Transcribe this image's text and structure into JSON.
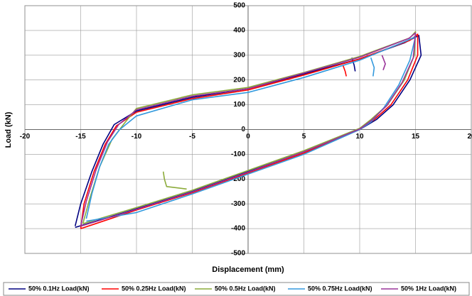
{
  "chart_data": {
    "type": "line",
    "xlabel": "Displacement (mm)",
    "ylabel": "Load (kN)",
    "xlim": [
      -20,
      20
    ],
    "xticks": [
      -20,
      -15,
      -10,
      -5,
      0,
      5,
      10,
      15,
      20
    ],
    "ylim": [
      -500,
      500
    ],
    "yticks": [
      -500,
      -400,
      -300,
      -200,
      -100,
      0,
      100,
      200,
      300,
      400,
      500
    ],
    "grid": true,
    "legend": "bottom",
    "series": [
      {
        "name": "50% 0.1Hz Load(kN)",
        "color": "#000080",
        "x": [
          -15.5,
          -15,
          -14,
          -13,
          -12,
          -10,
          -5,
          0,
          5,
          10,
          14,
          15.3,
          15.5,
          14.5,
          13,
          11.5,
          10,
          5,
          0,
          -5,
          -10,
          -15.5,
          null,
          9.3,
          9.5,
          9.6
        ],
        "values": [
          -390,
          -300,
          -170,
          -60,
          20,
          75,
          130,
          165,
          225,
          285,
          350,
          380,
          300,
          200,
          100,
          40,
          0,
          -90,
          -170,
          -250,
          -320,
          -395,
          null,
          290,
          260,
          235
        ]
      },
      {
        "name": "50% 0.25Hz Load(kN)",
        "color": "#ff0000",
        "x": [
          -15,
          -14.7,
          -13.8,
          -12.8,
          -11.8,
          -10,
          -5,
          0,
          5,
          10,
          14.5,
          15.2,
          15.2,
          14.3,
          12.8,
          11.3,
          10,
          5,
          0,
          -5,
          -10,
          -15,
          null,
          8.5,
          8.7,
          8.8
        ],
        "values": [
          -400,
          -300,
          -170,
          -60,
          15,
          70,
          125,
          160,
          220,
          285,
          360,
          385,
          300,
          200,
          100,
          40,
          0,
          -95,
          -175,
          -255,
          -325,
          -400,
          null,
          260,
          235,
          215
        ]
      },
      {
        "name": "50% 0.5Hz Load(kN)",
        "color": "#8cab3a",
        "x": [
          -14.8,
          -14.2,
          -13.3,
          -12.2,
          -11,
          -10,
          -5,
          0,
          5,
          10,
          14.5,
          15,
          14.9,
          14,
          12.5,
          11,
          10,
          5,
          0,
          -5,
          -10,
          -14.8,
          null,
          -7.6,
          -7.5,
          -7.3,
          -5.5
        ],
        "values": [
          -380,
          -280,
          -150,
          -40,
          30,
          85,
          140,
          170,
          230,
          295,
          370,
          395,
          300,
          200,
          100,
          40,
          5,
          -85,
          -165,
          -245,
          -315,
          -380,
          null,
          -170,
          -200,
          -230,
          -240
        ]
      },
      {
        "name": "50% 0.75Hz Load(kN)",
        "color": "#3399dd",
        "x": [
          -14.5,
          -14,
          -13.3,
          -12.5,
          -11.5,
          -10,
          -5,
          0,
          5,
          10,
          14.3,
          15,
          14.5,
          13.5,
          12.2,
          11,
          10,
          5,
          0,
          -5,
          -10,
          -14.5,
          null,
          11,
          11.3,
          11.2
        ],
        "values": [
          -360,
          -260,
          -150,
          -60,
          0,
          55,
          120,
          150,
          210,
          280,
          360,
          375,
          280,
          180,
          90,
          30,
          0,
          -100,
          -180,
          -260,
          -335,
          -370,
          null,
          290,
          250,
          215
        ]
      },
      {
        "name": "50% 1Hz Load(kN)",
        "color": "#993399",
        "x": [
          -15,
          -14.5,
          -13.6,
          -12.6,
          -11.6,
          -10,
          -5,
          0,
          5,
          10,
          14.4,
          15,
          14.8,
          13.8,
          12.4,
          11,
          10,
          5,
          0,
          -5,
          -10,
          -15,
          null,
          12,
          12.3,
          12.1
        ],
        "values": [
          -390,
          -290,
          -160,
          -50,
          20,
          80,
          135,
          165,
          228,
          292,
          368,
          390,
          290,
          190,
          95,
          35,
          2,
          -90,
          -172,
          -252,
          -322,
          -390,
          null,
          300,
          265,
          240
        ]
      }
    ]
  }
}
